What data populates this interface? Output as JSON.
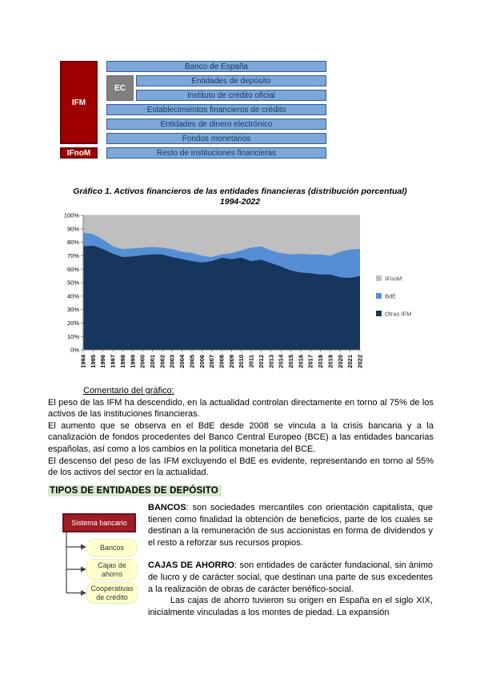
{
  "org_chart": {
    "ifm_label": "IFM",
    "ifnom_label": "IFnoM",
    "ec_label": "EC",
    "rows": [
      "Banco de España",
      "Entidades de depósito",
      "Instituto de crédito oficial",
      "Establecimientos financieros de crédito",
      "Entidades de dinero electrónico",
      "Fondos monetarios",
      "Resto de instituciones financieras"
    ],
    "colors": {
      "red": "#A00000",
      "blue_row": "#7DA7D9",
      "gray": "#808080"
    }
  },
  "chart": {
    "title_line1": "Gráfico 1. Activos financieros de las entidades financieras (distribución porcentual)",
    "title_line2": "1994-2022"
  },
  "chart_data": {
    "type": "area",
    "stacked": true,
    "title": "Gráfico 1. Activos financieros de las entidades financieras (distribución porcentual) 1994-2022",
    "xlabel": "",
    "ylabel": "",
    "ylim": [
      0,
      100
    ],
    "ytick_step": 10,
    "ytick_suffix": "%",
    "grid": false,
    "legend_position": "right",
    "x": [
      1994,
      1995,
      1996,
      1997,
      1998,
      1999,
      2000,
      2001,
      2002,
      2003,
      2004,
      2005,
      2006,
      2007,
      2008,
      2009,
      2010,
      2011,
      2012,
      2013,
      2014,
      2015,
      2016,
      2017,
      2018,
      2019,
      2020,
      2021,
      2022
    ],
    "series": [
      {
        "name": "Otras IFM",
        "color": "#17365D",
        "values": [
          77,
          77.5,
          75,
          71.5,
          69,
          69.5,
          70.5,
          71,
          71,
          69,
          67.5,
          66,
          65,
          66,
          68.5,
          67.5,
          68.5,
          66,
          67,
          64.5,
          62,
          59,
          57.5,
          57,
          56,
          56,
          54,
          53.5,
          55
        ]
      },
      {
        "name": "BdE",
        "color": "#558ED5",
        "values": [
          10,
          8.5,
          7,
          5.5,
          6,
          6,
          5.5,
          5.5,
          5,
          6,
          5.5,
          6,
          5,
          3,
          2.5,
          4.5,
          5.5,
          10,
          10,
          9.5,
          10,
          12,
          14,
          14,
          15,
          14,
          19,
          21,
          20
        ]
      },
      {
        "name": "IFnoM",
        "color": "#BFBFBF",
        "values": [
          13,
          14,
          18,
          23,
          25,
          24.5,
          24,
          23.5,
          24,
          25,
          27,
          28,
          30,
          31,
          29,
          28,
          26,
          24,
          23,
          26,
          28,
          29,
          28.5,
          29,
          29,
          30,
          27,
          25.5,
          25
        ]
      }
    ],
    "legend": [
      "IFnoM",
      "BdE",
      "Otras IFM"
    ]
  },
  "commentary": {
    "heading": "Comentario del gráfico:",
    "p1": "El peso de las IFM ha descendido, en la actualidad controlan directamente en torno al 75% de los activos de las instituciones financieras.",
    "p2": "El aumento que se observa en el BdE desde 2008 se vincula a la crisis bancaria y a la canalización de fondos procedentes del Banco Central Europeo (BCE) a las entidades bancarias españolas, así como a los cambios en la política monetaria del BCE.",
    "p3": "El descenso del peso de las IFM excluyendo el BdE es evidente, representando en torno al 55% de los activos del sector en la actualidad."
  },
  "section": {
    "heading": "TIPOS DE ENTIDADES DE DEPÓSITO",
    "highlight_color": "#D7E9CF"
  },
  "sistema_diagram": {
    "root": "Sistema bancario",
    "children": [
      "Bancos",
      "Cajas de ahorro",
      "Cooperativas de crédito"
    ],
    "root_color": "#A01C26",
    "child_color": "#FFFFCC"
  },
  "definitions": {
    "bancos_label": "BANCOS",
    "bancos_text": ": son sociedades mercantiles con orientación capitalista, que tienen como finalidad la obtención de beneficios, parte de los cuales se destinan a la remuneración de sus accionistas en forma de dividendos y el resto a reforzar sus recursos propios.",
    "cajas_label": "CAJAS DE AHORRO",
    "cajas_text": ": son entidades de carácter fundacional, sin ánimo de lucro y de carácter social, que destinan una parte de sus excedentes a la realización de obras de carácter benéfico-social.",
    "cajas_p2": "Las cajas de ahorro tuvieron su origen en España en el siglo XIX, inicialmente vinculadas a los montes de piedad. La expansión"
  }
}
